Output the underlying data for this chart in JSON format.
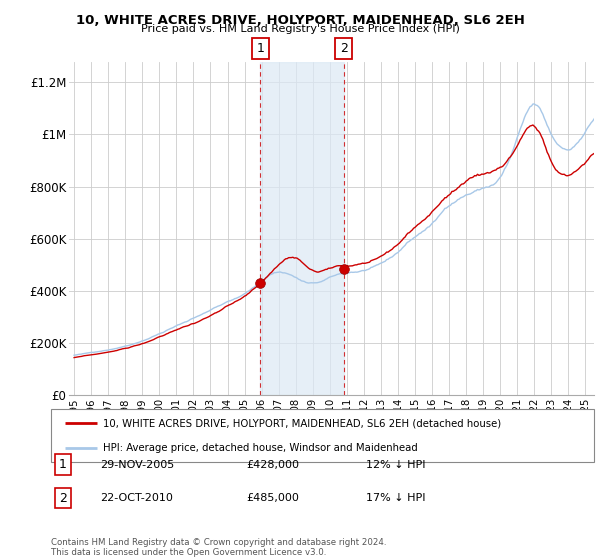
{
  "title": "10, WHITE ACRES DRIVE, HOLYPORT, MAIDENHEAD, SL6 2EH",
  "subtitle": "Price paid vs. HM Land Registry's House Price Index (HPI)",
  "hpi_color": "#a8c8e8",
  "price_color": "#cc0000",
  "shade_color": "#dce9f5",
  "shade_alpha": 0.7,
  "marker1_label": "1",
  "marker2_label": "2",
  "legend_price": "10, WHITE ACRES DRIVE, HOLYPORT, MAIDENHEAD, SL6 2EH (detached house)",
  "legend_hpi": "HPI: Average price, detached house, Windsor and Maidenhead",
  "footer": "Contains HM Land Registry data © Crown copyright and database right 2024.\nThis data is licensed under the Open Government Licence v3.0.",
  "marker1_x": 2005.92,
  "marker1_y": 428000,
  "marker2_x": 2010.81,
  "marker2_y": 485000,
  "shade_x_start": 2005.92,
  "shade_x_end": 2010.81,
  "xlim_start": 1994.7,
  "xlim_end": 2025.5,
  "ylim": [
    0,
    1280000
  ],
  "yticks": [
    0,
    200000,
    400000,
    600000,
    800000,
    1000000,
    1200000
  ],
  "ytick_labels": [
    "£0",
    "£200K",
    "£400K",
    "£600K",
    "£800K",
    "£1M",
    "£1.2M"
  ],
  "years": [
    1995,
    1996,
    1997,
    1998,
    1999,
    2000,
    2001,
    2002,
    2003,
    2004,
    2005,
    2006,
    2007,
    2008,
    2009,
    2010,
    2011,
    2012,
    2013,
    2014,
    2015,
    2016,
    2017,
    2018,
    2019,
    2020,
    2021,
    2022,
    2023,
    2024,
    2025
  ]
}
